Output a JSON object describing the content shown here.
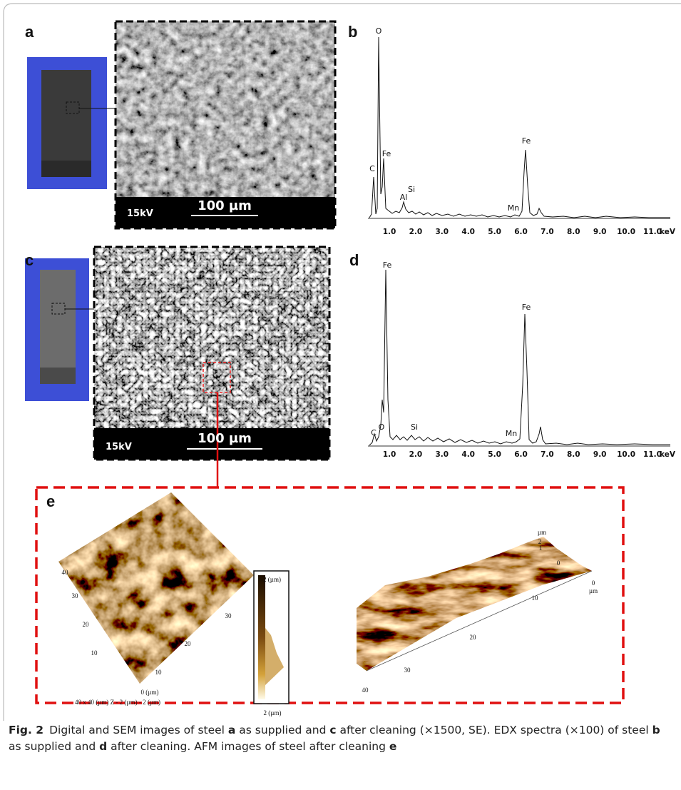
{
  "panel_labels": [
    "a",
    "b",
    "c",
    "d",
    "e"
  ],
  "sem_a": {
    "voltage": "15kV",
    "scale_bar": "100 µm"
  },
  "sem_c": {
    "voltage": "15kV",
    "scale_bar": "100 µm"
  },
  "edx_b": {
    "peaks": [
      "O",
      "C",
      "Fe",
      "Al",
      "Si",
      "Mn",
      "Fe"
    ],
    "x_ticks": [
      "1.0",
      "2.0",
      "3.0",
      "4.0",
      "5.0",
      "6.0",
      "7.0",
      "8.0",
      "9.0",
      "10.0",
      "11.0"
    ],
    "x_unit": "keV"
  },
  "edx_d": {
    "peaks": [
      "Fe",
      "C",
      "O",
      "Si",
      "Mn",
      "Fe"
    ],
    "x_ticks": [
      "1.0",
      "2.0",
      "3.0",
      "4.0",
      "5.0",
      "6.0",
      "7.0",
      "8.0",
      "9.0",
      "10.0",
      "11.0"
    ],
    "x_unit": "keV"
  },
  "afm_2d": {
    "axis_left": [
      "40",
      "30",
      "20",
      "10"
    ],
    "origin": "0 (µm)",
    "axis_right": [
      "10",
      "20",
      "30"
    ],
    "z_top": "-2 (µm)",
    "z_bottom": "2 (µm)",
    "size_note": "40 x 40 (µm)   Z - 2 (µm) - 2 (µm)"
  },
  "afm_3d": {
    "z_unit": "µm",
    "z_ticks": [
      "2",
      "1",
      "0"
    ],
    "y_tick": "0",
    "y_unit": "µm",
    "x_ticks": [
      "10",
      "20",
      "30",
      "40"
    ]
  },
  "caption": {
    "label": "Fig. 2",
    "parts": [
      {
        "text": "Digital and SEM images of steel ",
        "bold": false
      },
      {
        "text": "a",
        "bold": true
      },
      {
        "text": " as supplied and ",
        "bold": false
      },
      {
        "text": "c",
        "bold": true
      },
      {
        "text": " after cleaning (×1500, SE). EDX spectra (×100) of steel ",
        "bold": false
      },
      {
        "text": "b",
        "bold": true
      },
      {
        "text": " as supplied and ",
        "bold": false
      },
      {
        "text": "d",
        "bold": true
      },
      {
        "text": " after cleaning. AFM images of steel after cleaning ",
        "bold": false
      },
      {
        "text": "e",
        "bold": true
      }
    ]
  }
}
